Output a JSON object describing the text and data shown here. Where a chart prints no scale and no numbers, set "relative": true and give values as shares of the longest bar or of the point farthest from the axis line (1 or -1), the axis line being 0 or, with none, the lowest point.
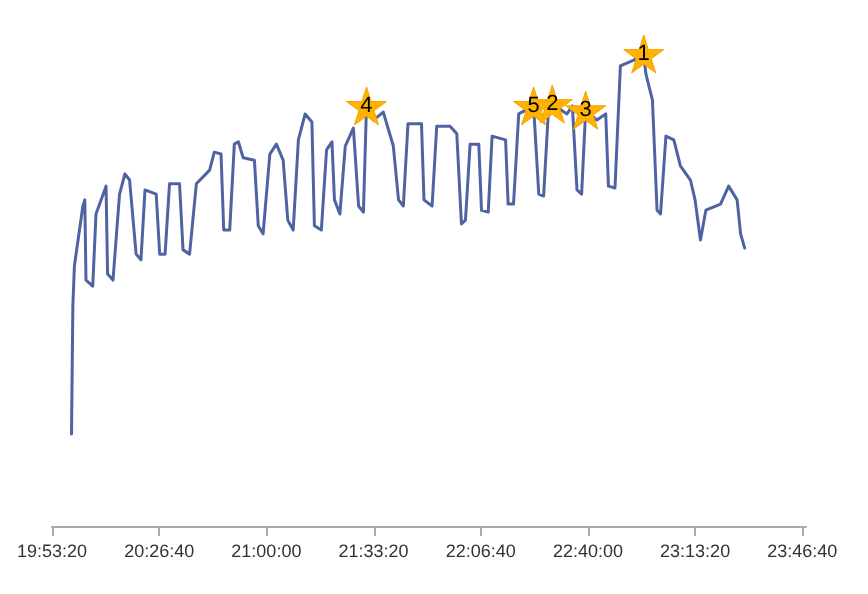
{
  "chart_data": {
    "type": "line",
    "relative": true,
    "marker": "none",
    "line_style": "solid",
    "grid": false,
    "xlim": [
      19.8889,
      23.797
    ],
    "xticks": [
      {
        "value": 19.8889,
        "label": "19:53:20"
      },
      {
        "value": 20.4444,
        "label": "20:26:40"
      },
      {
        "value": 21.0,
        "label": "21:00:00"
      },
      {
        "value": 21.5556,
        "label": "21:33:20"
      },
      {
        "value": 22.1111,
        "label": "22:06:40"
      },
      {
        "value": 22.6667,
        "label": "22:40:00"
      },
      {
        "value": 23.2222,
        "label": "23:13:20"
      },
      {
        "value": 23.7778,
        "label": "23:46:40"
      }
    ],
    "x": [
      19.99,
      19.997,
      20.005,
      20.049,
      20.059,
      20.065,
      20.1,
      20.117,
      20.169,
      20.177,
      20.205,
      20.239,
      20.267,
      20.291,
      20.325,
      20.35,
      20.371,
      20.429,
      20.447,
      20.475,
      20.498,
      20.55,
      20.568,
      20.602,
      20.637,
      20.706,
      20.73,
      20.765,
      20.779,
      20.81,
      20.834,
      20.855,
      20.88,
      20.938,
      20.958,
      20.983,
      21.018,
      21.052,
      21.087,
      21.111,
      21.139,
      21.166,
      21.201,
      21.236,
      21.249,
      21.285,
      21.312,
      21.34,
      21.353,
      21.381,
      21.409,
      21.451,
      21.478,
      21.503,
      21.519,
      21.555,
      21.606,
      21.658,
      21.685,
      21.71,
      21.734,
      21.804,
      21.817,
      21.859,
      21.883,
      21.952,
      21.987,
      22.011,
      22.032,
      22.056,
      22.101,
      22.115,
      22.15,
      22.17,
      22.24,
      22.253,
      22.281,
      22.308,
      22.385,
      22.412,
      22.437,
      22.461,
      22.482,
      22.558,
      22.586,
      22.61,
      22.634,
      22.655,
      22.713,
      22.759,
      22.773,
      22.807,
      22.835,
      22.904,
      22.956,
      22.967,
      23.001,
      23.025,
      23.043,
      23.071,
      23.112,
      23.146,
      23.198,
      23.222,
      23.25,
      23.278,
      23.354,
      23.396,
      23.44,
      23.458,
      23.479
    ],
    "series": [
      {
        "color": "#4f63a3",
        "values": [
          0.195,
          0.466,
          0.551,
          0.678,
          0.691,
          0.521,
          0.508,
          0.661,
          0.72,
          0.534,
          0.521,
          0.703,
          0.746,
          0.733,
          0.576,
          0.564,
          0.712,
          0.703,
          0.576,
          0.576,
          0.725,
          0.725,
          0.585,
          0.576,
          0.725,
          0.754,
          0.792,
          0.788,
          0.627,
          0.627,
          0.809,
          0.814,
          0.78,
          0.775,
          0.636,
          0.619,
          0.788,
          0.809,
          0.775,
          0.648,
          0.627,
          0.818,
          0.873,
          0.856,
          0.636,
          0.627,
          0.797,
          0.814,
          0.691,
          0.661,
          0.805,
          0.843,
          0.678,
          0.665,
          0.89,
          0.86,
          0.877,
          0.805,
          0.691,
          0.678,
          0.852,
          0.852,
          0.691,
          0.678,
          0.847,
          0.847,
          0.831,
          0.64,
          0.648,
          0.809,
          0.809,
          0.669,
          0.665,
          0.826,
          0.818,
          0.682,
          0.682,
          0.873,
          0.89,
          0.703,
          0.699,
          0.873,
          0.894,
          0.873,
          0.89,
          0.712,
          0.703,
          0.881,
          0.86,
          0.873,
          0.72,
          0.716,
          0.975,
          0.987,
          1,
          0.958,
          0.903,
          0.669,
          0.661,
          0.826,
          0.818,
          0.763,
          0.733,
          0.691,
          0.606,
          0.669,
          0.682,
          0.72,
          0.691,
          0.619,
          0.589
        ]
      }
    ],
    "annotations": [
      {
        "text": "1",
        "x": 22.956,
        "y": 1
      },
      {
        "text": "2",
        "x": 22.482,
        "y": 0.894
      },
      {
        "text": "3",
        "x": 22.655,
        "y": 0.881
      },
      {
        "text": "4",
        "x": 21.519,
        "y": 0.89
      },
      {
        "text": "5",
        "x": 22.385,
        "y": 0.89
      }
    ]
  }
}
